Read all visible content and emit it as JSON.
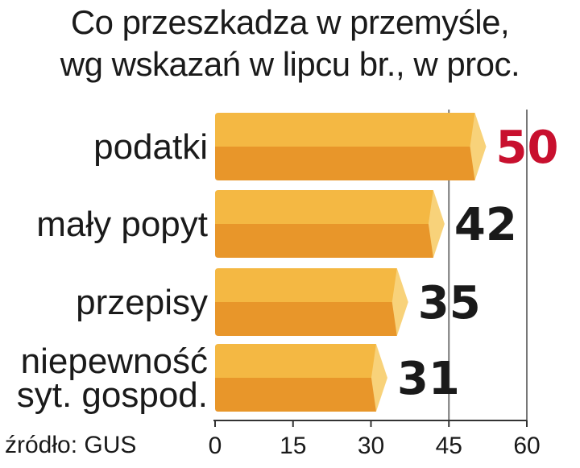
{
  "title_line1": "Co przeszkadza w przemyśle,",
  "title_line2": "wg wskazań w lipcu br., w proc.",
  "source": "źródło: GUS",
  "colors": {
    "bar_top": "#f4b843",
    "bar_bottom": "#e8962a",
    "bar_tip": "#f8d27a",
    "highlight": "#c8102e",
    "value": "#1a1a1a",
    "grid": "#777777"
  },
  "chart_data": {
    "type": "bar",
    "orientation": "horizontal",
    "categories": [
      [
        "podatki"
      ],
      [
        "mały popyt"
      ],
      [
        "przepisy"
      ],
      [
        "niepewność",
        "syt. gospod."
      ]
    ],
    "values": [
      50,
      42,
      35,
      31
    ],
    "value_labels": [
      "50",
      "42",
      "35",
      "31"
    ],
    "highlight_index": 0,
    "xlim": [
      0,
      60
    ],
    "xticks": [
      0,
      15,
      30,
      45,
      60
    ],
    "xtick_labels": [
      "0",
      "15",
      "30",
      "45",
      "60"
    ],
    "gridlines_x": [
      45,
      60
    ]
  }
}
